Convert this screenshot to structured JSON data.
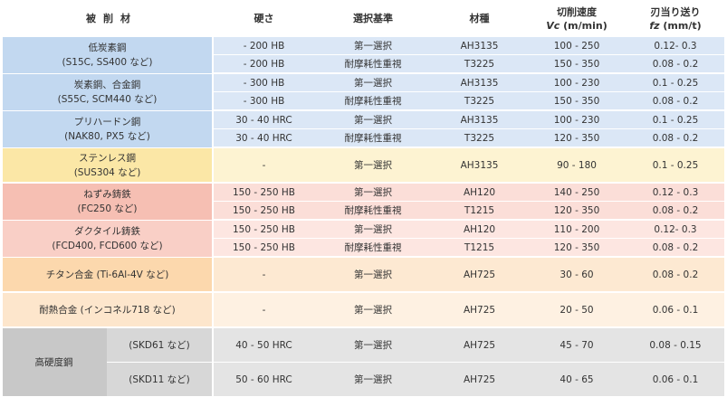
{
  "headers": {
    "material": "被削材",
    "hardness": "硬さ",
    "selection": "選択基準",
    "grade": "材種",
    "vc_title": "切削速度",
    "vc_sym": "Vc",
    "vc_unit": " (m/min)",
    "fz_title": "刃当り送り",
    "fz_sym": "fz",
    "fz_unit": " (mm/t)"
  },
  "materials": [
    {
      "name": "低炭素鋼",
      "sub": "(S15C, SS400 など)"
    },
    {
      "name": "炭素鋼、合金鋼",
      "sub": "(S55C, SCM440 など)"
    },
    {
      "name": "プリハードン鋼",
      "sub": "(NAK80, PX5 など)"
    },
    {
      "name": "ステンレス鋼",
      "sub": "(SUS304 など)"
    },
    {
      "name": "ねずみ鋳鉄",
      "sub": "(FC250 など)"
    },
    {
      "name": "ダクタイル鋳鉄",
      "sub": "(FCD400, FCD600 など)"
    },
    {
      "name": "チタン合金 (Ti-6Al-4V など)",
      "sub": ""
    },
    {
      "name": "耐熱合金 (インコネル718 など)",
      "sub": ""
    },
    {
      "name": "高硬度鋼",
      "sub": ""
    }
  ],
  "hardened_subs": [
    "(SKD61 など)",
    "(SKD11 など)"
  ],
  "rows": [
    {
      "hardness": "- 200 HB",
      "selection": "第一選択",
      "grade": "AH3135",
      "vc": "100 - 250",
      "fz": "0.12- 0.3"
    },
    {
      "hardness": "- 200 HB",
      "selection": "耐摩耗性重視",
      "grade": "T3225",
      "vc": "150 - 350",
      "fz": "0.08 - 0.2"
    },
    {
      "hardness": "- 300 HB",
      "selection": "第一選択",
      "grade": "AH3135",
      "vc": "100 - 230",
      "fz": "0.1 - 0.25"
    },
    {
      "hardness": "- 300 HB",
      "selection": "耐摩耗性重視",
      "grade": "T3225",
      "vc": "150 - 350",
      "fz": "0.08 - 0.2"
    },
    {
      "hardness": "30 - 40 HRC",
      "selection": "第一選択",
      "grade": "AH3135",
      "vc": "100 - 230",
      "fz": "0.1 - 0.25"
    },
    {
      "hardness": "30 - 40 HRC",
      "selection": "耐摩耗性重視",
      "grade": "T3225",
      "vc": "120 - 350",
      "fz": "0.08 - 0.2"
    },
    {
      "hardness": "-",
      "selection": "第一選択",
      "grade": "AH3135",
      "vc": "90 - 180",
      "fz": "0.1 - 0.25"
    },
    {
      "hardness": "150 - 250 HB",
      "selection": "第一選択",
      "grade": "AH120",
      "vc": "140 - 250",
      "fz": "0.12 - 0.3"
    },
    {
      "hardness": "150 - 250 HB",
      "selection": "耐摩耗性重視",
      "grade": "T1215",
      "vc": "120 - 350",
      "fz": "0.08 - 0.2"
    },
    {
      "hardness": "150 - 250 HB",
      "selection": "第一選択",
      "grade": "AH120",
      "vc": "110 - 200",
      "fz": "0.12- 0.3"
    },
    {
      "hardness": "150 - 250 HB",
      "selection": "耐摩耗性重視",
      "grade": "T1215",
      "vc": "120 - 350",
      "fz": "0.08 - 0.2"
    },
    {
      "hardness": "-",
      "selection": "第一選択",
      "grade": "AH725",
      "vc": "30 - 60",
      "fz": "0.08 - 0.2"
    },
    {
      "hardness": "-",
      "selection": "第一選択",
      "grade": "AH725",
      "vc": "20 - 50",
      "fz": "0.06 - 0.1"
    },
    {
      "hardness": "40 - 50 HRC",
      "selection": "第一選択",
      "grade": "AH725",
      "vc": "45 - 70",
      "fz": "0.08 - 0.15"
    },
    {
      "hardness": "50 - 60 HRC",
      "selection": "第一選択",
      "grade": "AH725",
      "vc": "40 - 65",
      "fz": "0.06 - 0.1"
    }
  ]
}
